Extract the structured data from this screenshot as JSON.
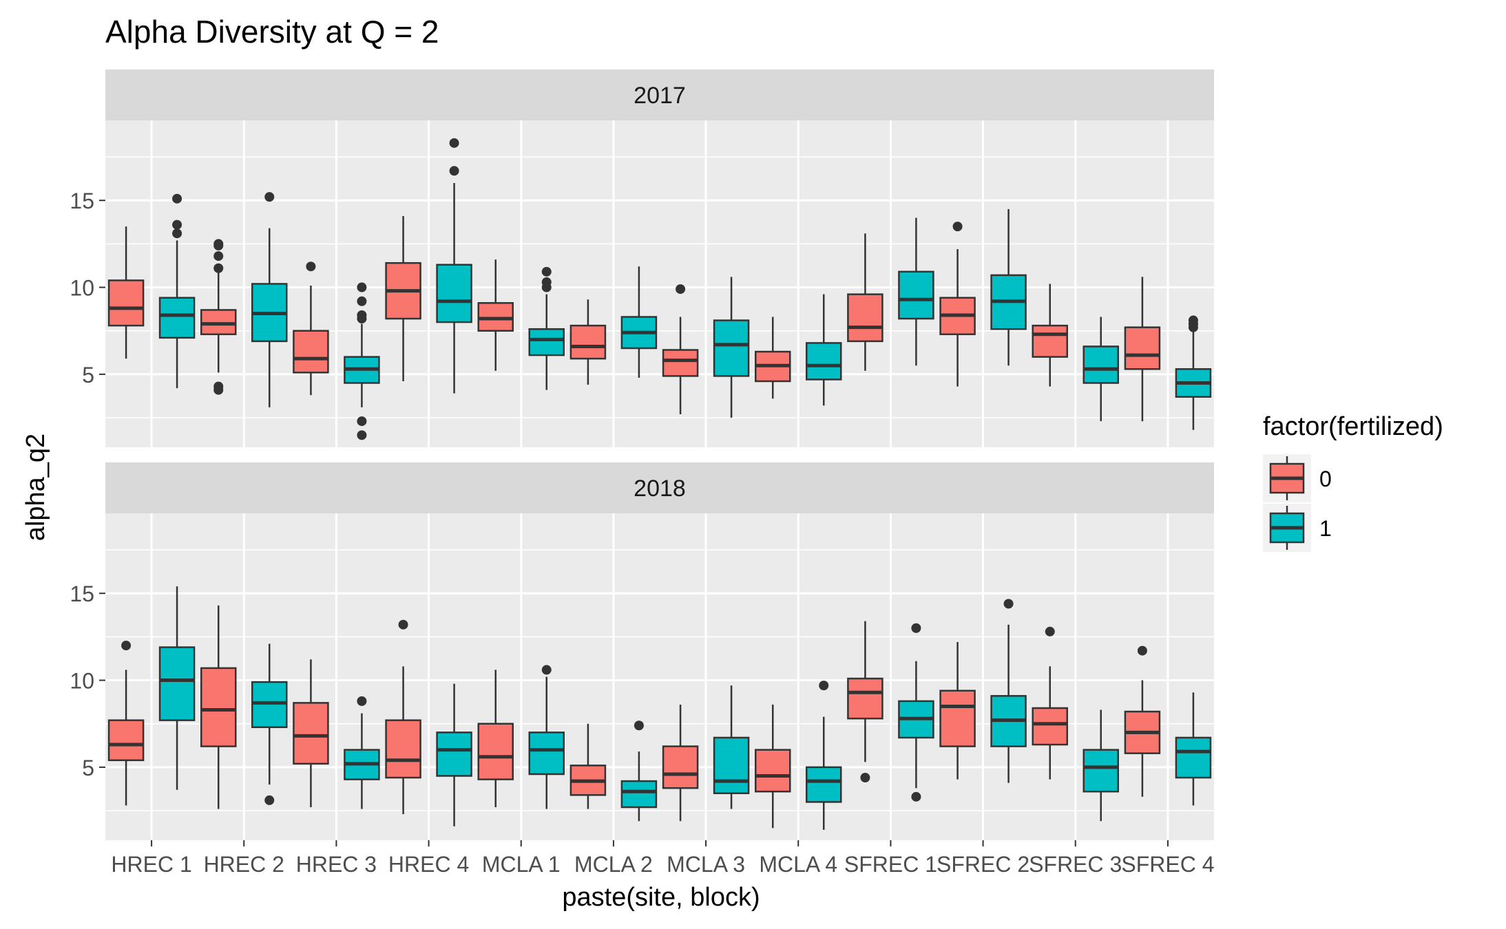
{
  "chart_data": {
    "type": "boxplot",
    "title": "Alpha Diversity at Q = 2",
    "xlabel": "paste(site, block)",
    "ylabel": "alpha_q2",
    "categories": [
      "HREC 1",
      "HREC 2",
      "HREC 3",
      "HREC 4",
      "MCLA 1",
      "MCLA 2",
      "MCLA 3",
      "MCLA 4",
      "SFREC 1",
      "SFREC 2",
      "SFREC 3",
      "SFREC 4"
    ],
    "y_ticks": [
      5,
      10,
      15
    ],
    "ylim": [
      0.8,
      19.6
    ],
    "grid": true,
    "legend": {
      "title": "factor(fertilized)",
      "position": "right",
      "entries": [
        {
          "label": "0",
          "color": "#F8766D"
        },
        {
          "label": "1",
          "color": "#00BFC4"
        }
      ]
    },
    "facets": [
      {
        "label": "2017",
        "series": [
          {
            "level": "0",
            "color": "#F8766D",
            "boxes": [
              {
                "min": 5.9,
                "q1": 7.8,
                "median": 8.8,
                "q3": 10.4,
                "max": 13.5,
                "outliers": []
              },
              {
                "min": 5.1,
                "q1": 7.3,
                "median": 7.9,
                "q3": 8.7,
                "max": 10.9,
                "outliers": [
                  12.5,
                  12.4,
                  11.8,
                  11.1,
                  4.3,
                  4.1
                ]
              },
              {
                "min": 3.8,
                "q1": 5.1,
                "median": 5.9,
                "q3": 7.5,
                "max": 10.1,
                "outliers": [
                  11.2
                ]
              },
              {
                "min": 4.6,
                "q1": 8.2,
                "median": 9.8,
                "q3": 11.4,
                "max": 14.1,
                "outliers": []
              },
              {
                "min": 5.2,
                "q1": 7.5,
                "median": 8.2,
                "q3": 9.1,
                "max": 11.6,
                "outliers": []
              },
              {
                "min": 4.4,
                "q1": 5.9,
                "median": 6.6,
                "q3": 7.8,
                "max": 9.3,
                "outliers": []
              },
              {
                "min": 2.7,
                "q1": 4.9,
                "median": 5.8,
                "q3": 6.4,
                "max": 8.3,
                "outliers": [
                  9.9
                ]
              },
              {
                "min": 3.6,
                "q1": 4.6,
                "median": 5.5,
                "q3": 6.3,
                "max": 8.3,
                "outliers": []
              },
              {
                "min": 5.2,
                "q1": 6.9,
                "median": 7.7,
                "q3": 9.6,
                "max": 13.1,
                "outliers": []
              },
              {
                "min": 4.3,
                "q1": 7.3,
                "median": 8.4,
                "q3": 9.4,
                "max": 12.2,
                "outliers": [
                  13.5
                ]
              },
              {
                "min": 4.3,
                "q1": 6.0,
                "median": 7.3,
                "q3": 7.8,
                "max": 10.2,
                "outliers": []
              },
              {
                "min": 2.3,
                "q1": 5.3,
                "median": 6.1,
                "q3": 7.7,
                "max": 10.6,
                "outliers": []
              }
            ]
          },
          {
            "level": "1",
            "color": "#00BFC4",
            "boxes": [
              {
                "min": 4.2,
                "q1": 7.1,
                "median": 8.4,
                "q3": 9.4,
                "max": 12.7,
                "outliers": [
                  15.1,
                  13.6,
                  13.1
                ]
              },
              {
                "min": 3.1,
                "q1": 6.9,
                "median": 8.5,
                "q3": 10.2,
                "max": 13.4,
                "outliers": [
                  15.2
                ]
              },
              {
                "min": 3.1,
                "q1": 4.5,
                "median": 5.3,
                "q3": 6.0,
                "max": 7.9,
                "outliers": [
                  10.0,
                  9.2,
                  8.4,
                  8.2,
                  2.3,
                  1.5
                ]
              },
              {
                "min": 3.9,
                "q1": 8.0,
                "median": 9.2,
                "q3": 11.3,
                "max": 16.0,
                "outliers": [
                  18.3,
                  16.7
                ]
              },
              {
                "min": 4.1,
                "q1": 6.1,
                "median": 7.0,
                "q3": 7.6,
                "max": 9.6,
                "outliers": [
                  10.9,
                  10.3,
                  10.0
                ]
              },
              {
                "min": 4.8,
                "q1": 6.5,
                "median": 7.4,
                "q3": 8.3,
                "max": 11.2,
                "outliers": []
              },
              {
                "min": 2.5,
                "q1": 4.9,
                "median": 6.7,
                "q3": 8.1,
                "max": 10.6,
                "outliers": []
              },
              {
                "min": 3.2,
                "q1": 4.7,
                "median": 5.5,
                "q3": 6.8,
                "max": 9.6,
                "outliers": []
              },
              {
                "min": 5.5,
                "q1": 8.2,
                "median": 9.3,
                "q3": 10.9,
                "max": 14.0,
                "outliers": []
              },
              {
                "min": 5.5,
                "q1": 7.6,
                "median": 9.2,
                "q3": 10.7,
                "max": 14.5,
                "outliers": []
              },
              {
                "min": 2.3,
                "q1": 4.5,
                "median": 5.3,
                "q3": 6.6,
                "max": 8.3,
                "outliers": []
              },
              {
                "min": 1.8,
                "q1": 3.7,
                "median": 4.5,
                "q3": 5.3,
                "max": 7.5,
                "outliers": [
                  8.1,
                  7.9,
                  7.7
                ]
              }
            ]
          }
        ]
      },
      {
        "label": "2018",
        "series": [
          {
            "level": "0",
            "color": "#F8766D",
            "boxes": [
              {
                "min": 2.8,
                "q1": 5.4,
                "median": 6.3,
                "q3": 7.7,
                "max": 10.6,
                "outliers": [
                  12.0
                ]
              },
              {
                "min": 2.6,
                "q1": 6.2,
                "median": 8.3,
                "q3": 10.7,
                "max": 14.3,
                "outliers": []
              },
              {
                "min": 2.7,
                "q1": 5.2,
                "median": 6.8,
                "q3": 8.7,
                "max": 11.2,
                "outliers": []
              },
              {
                "min": 2.3,
                "q1": 4.4,
                "median": 5.4,
                "q3": 7.7,
                "max": 10.8,
                "outliers": [
                  13.2
                ]
              },
              {
                "min": 2.7,
                "q1": 4.3,
                "median": 5.6,
                "q3": 7.5,
                "max": 10.6,
                "outliers": []
              },
              {
                "min": 2.6,
                "q1": 3.4,
                "median": 4.2,
                "q3": 5.1,
                "max": 7.5,
                "outliers": []
              },
              {
                "min": 1.9,
                "q1": 3.8,
                "median": 4.6,
                "q3": 6.2,
                "max": 8.6,
                "outliers": []
              },
              {
                "min": 1.5,
                "q1": 3.6,
                "median": 4.5,
                "q3": 6.0,
                "max": 8.6,
                "outliers": []
              },
              {
                "min": 5.3,
                "q1": 7.8,
                "median": 9.3,
                "q3": 10.1,
                "max": 13.4,
                "outliers": [
                  4.4
                ]
              },
              {
                "min": 4.3,
                "q1": 6.2,
                "median": 8.5,
                "q3": 9.4,
                "max": 12.2,
                "outliers": []
              },
              {
                "min": 4.3,
                "q1": 6.3,
                "median": 7.5,
                "q3": 8.4,
                "max": 10.8,
                "outliers": [
                  12.8
                ]
              },
              {
                "min": 3.3,
                "q1": 5.8,
                "median": 7.0,
                "q3": 8.2,
                "max": 10.0,
                "outliers": [
                  11.7
                ]
              }
            ]
          },
          {
            "level": "1",
            "color": "#00BFC4",
            "boxes": [
              {
                "min": 3.7,
                "q1": 7.7,
                "median": 10.0,
                "q3": 11.9,
                "max": 15.4,
                "outliers": []
              },
              {
                "min": 4.0,
                "q1": 7.3,
                "median": 8.7,
                "q3": 9.9,
                "max": 12.1,
                "outliers": [
                  3.1
                ]
              },
              {
                "min": 2.6,
                "q1": 4.3,
                "median": 5.2,
                "q3": 6.0,
                "max": 8.1,
                "outliers": [
                  8.8
                ]
              },
              {
                "min": 1.6,
                "q1": 4.5,
                "median": 6.0,
                "q3": 7.0,
                "max": 9.8,
                "outliers": []
              },
              {
                "min": 2.6,
                "q1": 4.6,
                "median": 6.0,
                "q3": 7.0,
                "max": 10.2,
                "outliers": [
                  10.6
                ]
              },
              {
                "min": 1.9,
                "q1": 2.7,
                "median": 3.6,
                "q3": 4.2,
                "max": 5.9,
                "outliers": [
                  7.4
                ]
              },
              {
                "min": 2.6,
                "q1": 3.5,
                "median": 4.2,
                "q3": 6.7,
                "max": 9.7,
                "outliers": []
              },
              {
                "min": 1.4,
                "q1": 3.0,
                "median": 4.2,
                "q3": 5.0,
                "max": 7.9,
                "outliers": [
                  9.7
                ]
              },
              {
                "min": 3.8,
                "q1": 6.7,
                "median": 7.8,
                "q3": 8.8,
                "max": 11.1,
                "outliers": [
                  13.0,
                  3.3
                ]
              },
              {
                "min": 4.1,
                "q1": 6.2,
                "median": 7.7,
                "q3": 9.1,
                "max": 13.2,
                "outliers": [
                  14.4
                ]
              },
              {
                "min": 1.9,
                "q1": 3.6,
                "median": 5.0,
                "q3": 6.0,
                "max": 8.3,
                "outliers": []
              },
              {
                "min": 2.8,
                "q1": 4.4,
                "median": 5.9,
                "q3": 6.7,
                "max": 9.3,
                "outliers": []
              }
            ]
          }
        ]
      }
    ]
  }
}
